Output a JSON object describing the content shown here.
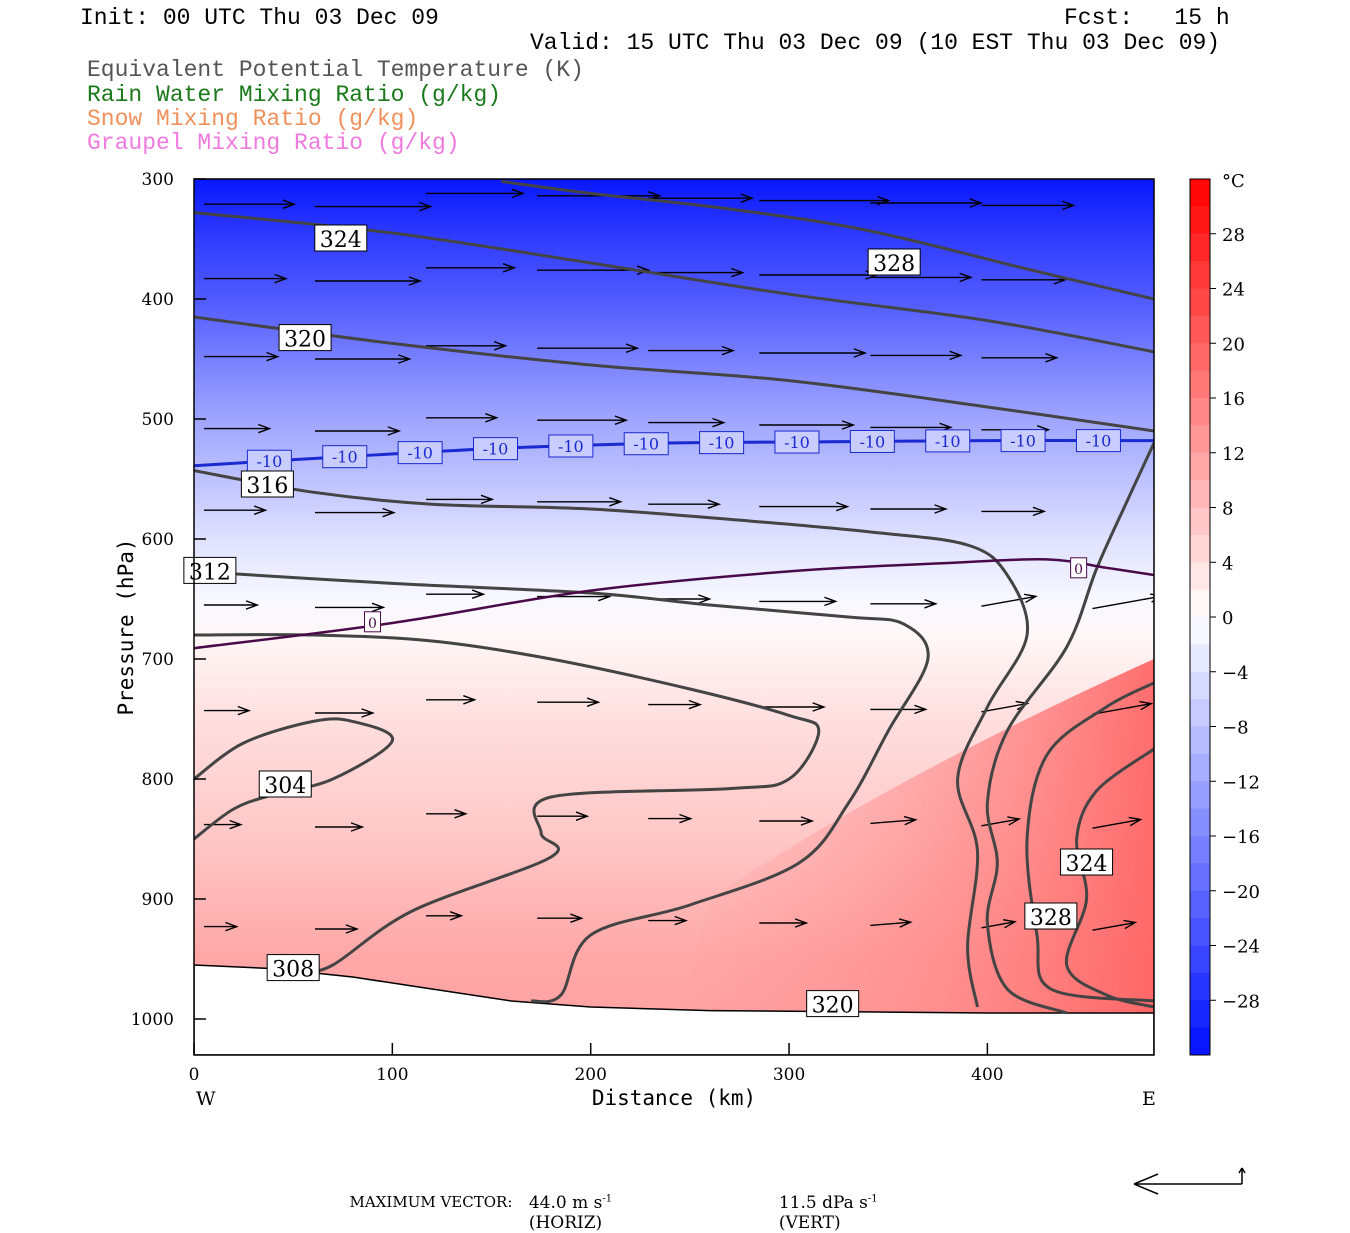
{
  "header": {
    "init": "Init: 00 UTC Thu 03 Dec 09",
    "fcst": "Fcst:   15 h",
    "valid": "Valid: 15 UTC Thu 03 Dec 09 (10 EST Thu 03 Dec 09)",
    "fields": [
      {
        "label": "Equivalent Potential Temperature (K)",
        "color": "#555555"
      },
      {
        "label": "Rain Water Mixing Ratio (g/kg)",
        "color": "#1a7a1a"
      },
      {
        "label": "Snow Mixing Ratio (g/kg)",
        "color": "#f0905a"
      },
      {
        "label": "Graupel Mixing Ratio (g/kg)",
        "color": "#f07ae0"
      }
    ]
  },
  "chart_data": {
    "type": "cross-section",
    "xlabel": "Distance (km)",
    "ylabel": "Pressure (hPa)",
    "xlim": [
      0,
      484
    ],
    "ylim": [
      300,
      1030
    ],
    "x_ticks": [
      0,
      100,
      200,
      300,
      400
    ],
    "y_ticks": [
      300,
      400,
      500,
      600,
      700,
      800,
      900,
      1000
    ],
    "x_end_labels": {
      "left": "W",
      "right": "E"
    },
    "colorbar": {
      "unit": "°C",
      "ticks": [
        28,
        24,
        20,
        16,
        12,
        8,
        4,
        0,
        -4,
        -8,
        -12,
        -16,
        -20,
        -24,
        -28
      ],
      "range": [
        -32,
        32
      ],
      "colors": {
        "cold": "#0010ff",
        "neutral": "#ffffff",
        "warm": "#ff0000"
      }
    },
    "temperature_field": {
      "isotherm_neg10": {
        "label": "-10",
        "color": "#1a2ad0",
        "points": [
          [
            0,
            539
          ],
          [
            80,
            531
          ],
          [
            160,
            524
          ],
          [
            240,
            520
          ],
          [
            320,
            519
          ],
          [
            400,
            518
          ],
          [
            484,
            518
          ]
        ]
      },
      "isotherm_0": {
        "label": "0",
        "color": "#4a0a4a",
        "points": [
          [
            0,
            691
          ],
          [
            100,
            670
          ],
          [
            200,
            643
          ],
          [
            300,
            627
          ],
          [
            380,
            620
          ],
          [
            430,
            617
          ],
          [
            460,
            624
          ],
          [
            484,
            630
          ]
        ]
      }
    },
    "theta_e_contours": [
      {
        "value": 328,
        "label_at": [
          353,
          370
        ],
        "points": [
          [
            155,
            302
          ],
          [
            200,
            312
          ],
          [
            270,
            325
          ],
          [
            340,
            343
          ],
          [
            420,
            375
          ],
          [
            484,
            400
          ]
        ]
      },
      {
        "value": 324,
        "label_at": [
          74,
          350
        ],
        "points": [
          [
            0,
            328
          ],
          [
            100,
            345
          ],
          [
            200,
            370
          ],
          [
            300,
            396
          ],
          [
            400,
            418
          ],
          [
            484,
            444
          ]
        ]
      },
      {
        "value": 320,
        "label_at": [
          56,
          433
        ],
        "points": [
          [
            0,
            415
          ],
          [
            100,
            437
          ],
          [
            200,
            455
          ],
          [
            300,
            468
          ],
          [
            400,
            490
          ],
          [
            484,
            510
          ]
        ]
      },
      {
        "value": 316,
        "label_at": [
          37,
          555
        ],
        "points": [
          [
            0,
            543
          ],
          [
            60,
            561
          ],
          [
            120,
            571
          ],
          [
            200,
            575
          ],
          [
            280,
            585
          ],
          [
            340,
            594
          ],
          [
            390,
            605
          ],
          [
            410,
            630
          ],
          [
            420,
            680
          ],
          [
            400,
            740
          ],
          [
            385,
            800
          ],
          [
            395,
            860
          ],
          [
            390,
            940
          ],
          [
            395,
            990
          ]
        ]
      },
      {
        "value": 312,
        "label_at": [
          8,
          627
        ],
        "points": [
          [
            0,
            627
          ],
          [
            100,
            637
          ],
          [
            200,
            645
          ],
          [
            260,
            655
          ],
          [
            330,
            665
          ],
          [
            358,
            671
          ],
          [
            370,
            700
          ],
          [
            350,
            760
          ],
          [
            330,
            820
          ],
          [
            305,
            870
          ],
          [
            250,
            905
          ],
          [
            200,
            930
          ],
          [
            185,
            980
          ],
          [
            170,
            985
          ]
        ]
      },
      {
        "value": 308,
        "label_at": [
          50,
          958
        ],
        "points": [
          [
            0,
            680
          ],
          [
            60,
            680
          ],
          [
            120,
            685
          ],
          [
            180,
            700
          ],
          [
            250,
            725
          ],
          [
            300,
            747
          ],
          [
            315,
            760
          ],
          [
            300,
            800
          ],
          [
            270,
            808
          ],
          [
            180,
            815
          ],
          [
            175,
            845
          ],
          [
            180,
            865
          ],
          [
            110,
            910
          ],
          [
            70,
            955
          ],
          [
            55,
            960
          ]
        ]
      },
      {
        "value": 304,
        "label_at": [
          46,
          805
        ],
        "points": [
          [
            0,
            800
          ],
          [
            25,
            770
          ],
          [
            60,
            752
          ],
          [
            80,
            752
          ],
          [
            100,
            768
          ],
          [
            70,
            800
          ],
          [
            40,
            813
          ],
          [
            20,
            825
          ],
          [
            0,
            850
          ]
        ]
      },
      {
        "value": 320,
        "label_at": [
          322,
          988
        ],
        "points": [
          [
            484,
            520
          ],
          [
            470,
            570
          ],
          [
            455,
            625
          ],
          [
            440,
            690
          ],
          [
            410,
            760
          ],
          [
            400,
            820
          ],
          [
            405,
            870
          ],
          [
            400,
            920
          ],
          [
            410,
            975
          ],
          [
            440,
            995
          ]
        ]
      },
      {
        "value": 324,
        "label_at": [
          450,
          870
        ],
        "points": [
          [
            484,
            720
          ],
          [
            460,
            740
          ],
          [
            430,
            780
          ],
          [
            420,
            850
          ],
          [
            425,
            930
          ],
          [
            432,
            975
          ],
          [
            484,
            985
          ]
        ]
      },
      {
        "value": 328,
        "label_at": [
          432,
          915
        ],
        "points": [
          [
            484,
            775
          ],
          [
            455,
            810
          ],
          [
            445,
            850
          ],
          [
            450,
            900
          ],
          [
            440,
            955
          ],
          [
            460,
            980
          ],
          [
            484,
            990
          ]
        ]
      }
    ],
    "terrain": {
      "fill": "#ffffff",
      "points": [
        [
          0,
          955
        ],
        [
          40,
          958
        ],
        [
          80,
          965
        ],
        [
          120,
          975
        ],
        [
          160,
          985
        ],
        [
          200,
          990
        ],
        [
          260,
          993
        ],
        [
          330,
          994
        ],
        [
          400,
          995
        ],
        [
          484,
          995
        ]
      ]
    },
    "vectors_note": "wind arrows pointing east; longer aloft",
    "max_vector": {
      "label": "MAXIMUM VECTOR:",
      "horiz": "44.0 m s",
      "horiz_unit": "(HORIZ)",
      "vert": "11.5 dPa s",
      "vert_unit": "(VERT)",
      "exponent": "-1"
    }
  }
}
